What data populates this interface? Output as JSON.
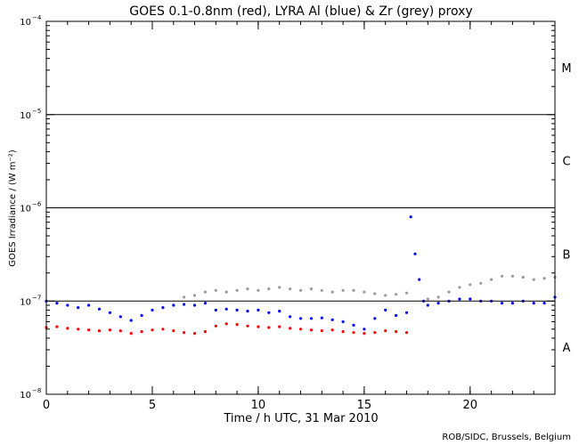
{
  "chart_data": {
    "type": "scatter",
    "title": "GOES 0.1-0.8nm (red), LYRA Al (blue) & Zr (grey) proxy",
    "xlabel": "Time / h UTC, 31 Mar 2010",
    "ylabel": "GOES Irradiance / (W m⁻²)",
    "credit": "ROB/SIDC, Brussels, Belgium",
    "xlim": [
      0,
      24
    ],
    "ylim": [
      1e-08,
      0.0001
    ],
    "yscale": "log",
    "x_ticks": [
      {
        "value": 0,
        "label": "0"
      },
      {
        "value": 5,
        "label": "5"
      },
      {
        "value": 10,
        "label": "10"
      },
      {
        "value": 15,
        "label": "15"
      },
      {
        "value": 20,
        "label": "20"
      }
    ],
    "y_ticks": [
      {
        "value": 1e-08,
        "mantissa": "10",
        "exponent": "−8"
      },
      {
        "value": 1e-07,
        "mantissa": "10",
        "exponent": "−7"
      },
      {
        "value": 1e-06,
        "mantissa": "10",
        "exponent": "−6"
      },
      {
        "value": 1e-05,
        "mantissa": "10",
        "exponent": "−5"
      },
      {
        "value": 0.0001,
        "mantissa": "10",
        "exponent": "−4"
      }
    ],
    "class_thresholds": [
      1e-07,
      1e-06,
      1e-05
    ],
    "flare_classes": [
      {
        "label": "A",
        "value": 3.2e-08
      },
      {
        "label": "B",
        "value": 3.2e-07
      },
      {
        "label": "C",
        "value": 3.2e-06
      },
      {
        "label": "M",
        "value": 3.2e-05
      }
    ],
    "series": [
      {
        "color": "#ff0000",
        "x": [
          0,
          0.5,
          1,
          1.5,
          2,
          2.5,
          3,
          3.5,
          4,
          4.5,
          5,
          5.5,
          6,
          6.5,
          7,
          7.5,
          8,
          8.5,
          9,
          9.5,
          10,
          10.5,
          11,
          11.5,
          12,
          12.5,
          13,
          13.5,
          14,
          14.5,
          15,
          15.5,
          16,
          16.5,
          17
        ],
        "values": [
          5.2e-08,
          5.3e-08,
          5.1e-08,
          5e-08,
          4.9e-08,
          4.8e-08,
          4.9e-08,
          4.8e-08,
          4.5e-08,
          4.7e-08,
          4.9e-08,
          5e-08,
          4.8e-08,
          4.6e-08,
          4.5e-08,
          4.7e-08,
          5.4e-08,
          5.7e-08,
          5.6e-08,
          5.4e-08,
          5.3e-08,
          5.2e-08,
          5.3e-08,
          5.1e-08,
          5e-08,
          4.9e-08,
          4.8e-08,
          4.9e-08,
          4.7e-08,
          4.6e-08,
          4.5e-08,
          4.6e-08,
          4.8e-08,
          4.7e-08,
          4.6e-08
        ]
      },
      {
        "color": "#9a9a9a",
        "x": [
          6.5,
          7,
          7.5,
          8,
          8.5,
          9,
          9.5,
          10,
          10.5,
          11,
          11.5,
          12,
          12.5,
          13,
          13.5,
          14,
          14.5,
          15,
          15.5,
          16,
          16.5,
          17,
          18,
          18.5,
          19,
          19.5,
          20,
          20.5,
          21,
          21.5,
          22,
          22.5,
          23,
          23.5,
          24
        ],
        "values": [
          1.1e-07,
          1.15e-07,
          1.25e-07,
          1.3e-07,
          1.25e-07,
          1.3e-07,
          1.35e-07,
          1.3e-07,
          1.35e-07,
          1.4e-07,
          1.35e-07,
          1.3e-07,
          1.35e-07,
          1.3e-07,
          1.25e-07,
          1.3e-07,
          1.3e-07,
          1.25e-07,
          1.2e-07,
          1.15e-07,
          1.18e-07,
          1.22e-07,
          1.05e-07,
          1.1e-07,
          1.25e-07,
          1.4e-07,
          1.5e-07,
          1.55e-07,
          1.7e-07,
          1.85e-07,
          1.85e-07,
          1.8e-07,
          1.7e-07,
          1.75e-07,
          1.8e-07
        ]
      },
      {
        "color": "#0000ff",
        "x": [
          0,
          0.5,
          1,
          1.5,
          2,
          2.5,
          3,
          3.5,
          4,
          4.5,
          5,
          5.5,
          6,
          6.5,
          7,
          7.5,
          8,
          8.5,
          9,
          9.5,
          10,
          10.5,
          11,
          11.5,
          12,
          12.5,
          13,
          13.5,
          14,
          14.5,
          15,
          15.5,
          16,
          16.5,
          17,
          17.2,
          17.4,
          17.6,
          17.8,
          18,
          18.5,
          19,
          19.5,
          20,
          20.5,
          21,
          21.5,
          22,
          22.5,
          23,
          23.5,
          24
        ],
        "values": [
          1e-07,
          9.5e-08,
          9e-08,
          8.5e-08,
          9e-08,
          8.2e-08,
          7.5e-08,
          6.8e-08,
          6.2e-08,
          7e-08,
          8e-08,
          8.5e-08,
          9e-08,
          9.2e-08,
          9e-08,
          9.5e-08,
          8e-08,
          8.2e-08,
          8e-08,
          7.8e-08,
          8e-08,
          7.5e-08,
          7.8e-08,
          6.8e-08,
          6.5e-08,
          6.5e-08,
          6.6e-08,
          6.3e-08,
          6e-08,
          5.5e-08,
          5e-08,
          6.5e-08,
          8e-08,
          7e-08,
          7.5e-08,
          8e-07,
          3.2e-07,
          1.7e-07,
          1e-07,
          9e-08,
          9.5e-08,
          1e-07,
          1.05e-07,
          1.05e-07,
          1e-07,
          1e-07,
          9.5e-08,
          9.5e-08,
          1e-07,
          9.5e-08,
          9.5e-08,
          1.1e-07
        ]
      }
    ],
    "grid": false,
    "legend": "none"
  }
}
